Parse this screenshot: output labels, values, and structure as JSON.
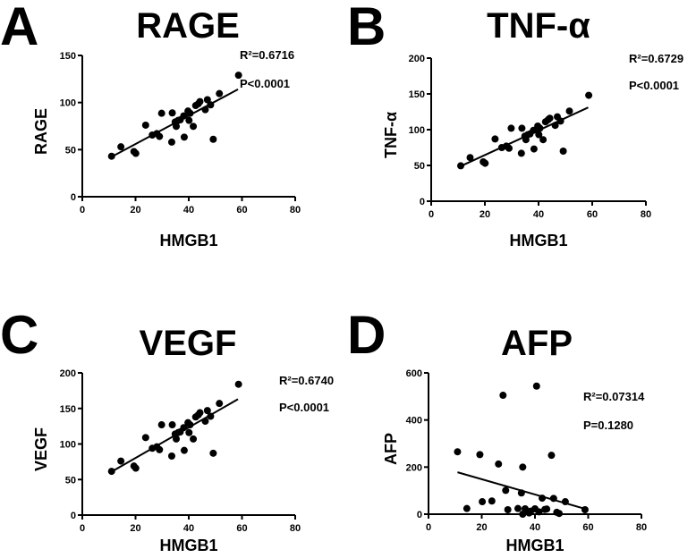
{
  "chart_data": [
    {
      "type": "scatter",
      "panel": "A",
      "title": "RAGE",
      "xlabel": "HMGB1",
      "ylabel": "RAGE",
      "xlim": [
        0,
        80
      ],
      "ylim": [
        0,
        150
      ],
      "xticks": [
        0,
        20,
        40,
        60,
        80
      ],
      "yticks": [
        0,
        50,
        100,
        150
      ],
      "r2": "R²=0.6716",
      "p": "P<0.0001",
      "x": [
        11,
        14.5,
        19.4,
        20.1,
        23.8,
        26.3,
        28,
        29,
        29.8,
        33.6,
        33.8,
        34.9,
        35.3,
        36,
        36.8,
        38.3,
        38.1,
        39.7,
        40.1,
        40.5,
        41.7,
        42.6,
        43.6,
        44.2,
        46.2,
        47,
        48.2,
        49.2,
        51.5,
        58.7
      ],
      "y": [
        43,
        53,
        48,
        46,
        76,
        65.5,
        67,
        64,
        88.6,
        58,
        89,
        79.4,
        74.7,
        81,
        81.6,
        63.3,
        85.8,
        91,
        81,
        88.6,
        74.7,
        96.8,
        98.7,
        101,
        92.4,
        103,
        97.5,
        61,
        109.5,
        129
      ],
      "fit": [
        [
          11,
          42.4
        ],
        [
          58.5,
          114
        ]
      ]
    },
    {
      "type": "scatter",
      "panel": "B",
      "title": "TNF-α",
      "xlabel": "HMGB1",
      "ylabel": "TNF-α",
      "xlim": [
        0,
        80
      ],
      "ylim": [
        0,
        200
      ],
      "xticks": [
        0,
        20,
        40,
        60,
        80
      ],
      "yticks": [
        0,
        50,
        100,
        150,
        200
      ],
      "r2": "R²=0.6729",
      "p": "P<0.0001",
      "x": [
        11,
        14.5,
        19.4,
        20.1,
        23.8,
        26.3,
        28,
        29,
        29.8,
        33.6,
        33.8,
        34.9,
        35.3,
        36,
        36.8,
        38.3,
        38.1,
        39.7,
        40.1,
        40.5,
        41.7,
        42.6,
        43.6,
        44.2,
        46.2,
        47,
        48.2,
        49.2,
        51.5,
        58.7
      ],
      "y": [
        49.5,
        61,
        55,
        53,
        87,
        75,
        77,
        74,
        102,
        67,
        102,
        91,
        86,
        93,
        94,
        73,
        99,
        105,
        93,
        102,
        86,
        111,
        114,
        116,
        106,
        118,
        112,
        70,
        126,
        148
      ],
      "fit": [
        [
          11,
          49
        ],
        [
          58.5,
          131
        ]
      ]
    },
    {
      "type": "scatter",
      "panel": "C",
      "title": "VEGF",
      "xlabel": "HMGB1",
      "ylabel": "VEGF",
      "xlim": [
        0,
        80
      ],
      "ylim": [
        0,
        200
      ],
      "xticks": [
        0,
        20,
        40,
        60,
        80
      ],
      "yticks": [
        0,
        50,
        100,
        150,
        200
      ],
      "r2": "R²=0.6740",
      "p": "P<0.0001",
      "x": [
        11,
        14.5,
        19.4,
        20.1,
        23.8,
        26.3,
        28,
        29,
        29.8,
        33.6,
        33.8,
        34.9,
        35.3,
        36,
        36.8,
        38.3,
        38.1,
        39.7,
        40.1,
        40.5,
        41.7,
        42.6,
        43.6,
        44.2,
        46.2,
        47,
        48.2,
        49.2,
        51.5,
        58.7
      ],
      "y": [
        61.5,
        76,
        69,
        66,
        109,
        94,
        96,
        92,
        127,
        83,
        127,
        114,
        107,
        116,
        117,
        91,
        123,
        130,
        116,
        127,
        107,
        138,
        141,
        144,
        132,
        147,
        139,
        87,
        157,
        184
      ],
      "fit": [
        [
          11,
          61
        ],
        [
          58.5,
          163
        ]
      ]
    },
    {
      "type": "scatter",
      "panel": "D",
      "title": "AFP",
      "xlabel": "HMGB1",
      "ylabel": "AFP",
      "xlim": [
        0,
        80
      ],
      "ylim": [
        0,
        600
      ],
      "xticks": [
        0,
        20,
        40,
        60,
        80
      ],
      "yticks": [
        0,
        200,
        400,
        600
      ],
      "r2": "R²=0.07314",
      "p": "P=0.1280",
      "x": [
        10.9,
        14.4,
        19.3,
        20.2,
        23.8,
        26.3,
        28,
        29,
        29.8,
        33.6,
        34.9,
        35.4,
        35.4,
        36.3,
        37.8,
        38.4,
        40,
        40.6,
        41.5,
        42.7,
        43.7,
        44.4,
        46.2,
        47,
        48.2,
        49.1,
        51.4,
        58.8
      ],
      "y": [
        265,
        24,
        253,
        53,
        56,
        213,
        505,
        101,
        19,
        24,
        90,
        200,
        0,
        23,
        5,
        13,
        23,
        544,
        10,
        68,
        20,
        22,
        250,
        67,
        8,
        3,
        53,
        19
      ],
      "fit": [
        [
          10.9,
          178
        ],
        [
          59,
          22
        ]
      ]
    }
  ]
}
